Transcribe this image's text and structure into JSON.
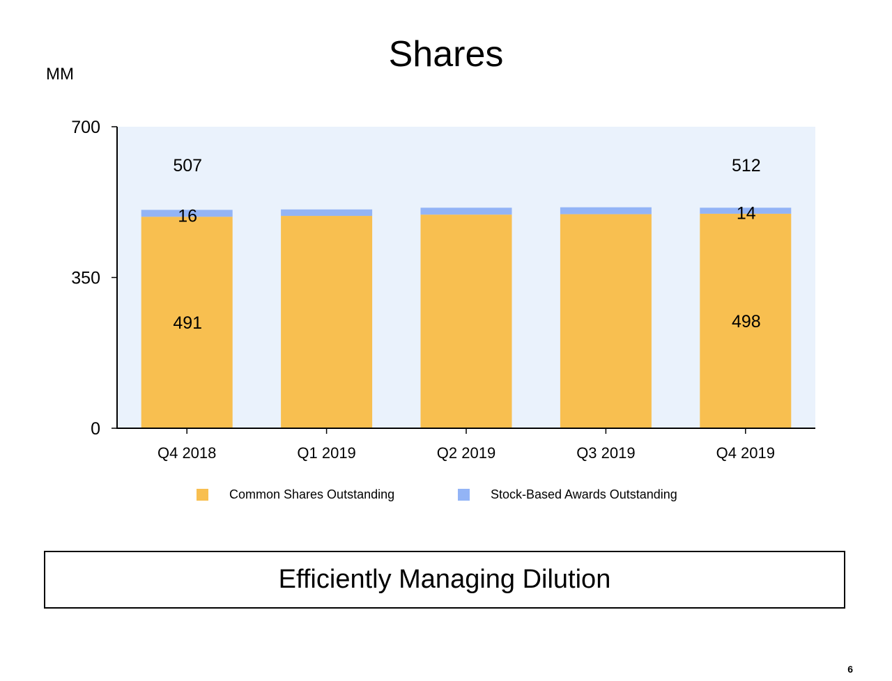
{
  "slide": {
    "title": "Shares",
    "unit": "MM",
    "callout": "Efficiently Managing Dilution",
    "page_number": "6"
  },
  "colors": {
    "plot_background": "#eaf2fc",
    "common_shares": "#f8bf50",
    "stock_awards": "#93b4f6",
    "axis": "#000000"
  },
  "chart_data": {
    "type": "bar",
    "stacked": true,
    "title": "Shares",
    "ylabel": "MM",
    "xlabel": "",
    "ylim": [
      0,
      700
    ],
    "yticks": [
      0,
      350,
      700
    ],
    "grid": false,
    "legend_position": "bottom",
    "categories": [
      "Q4 2018",
      "Q1 2019",
      "Q2 2019",
      "Q3 2019",
      "Q4 2019"
    ],
    "series": [
      {
        "name": "Common Shares Outstanding",
        "values": [
          491,
          493,
          496,
          497,
          498
        ]
      },
      {
        "name": "Stock-Based Awards Outstanding",
        "values": [
          16,
          15,
          16,
          16,
          14
        ]
      }
    ],
    "totals": [
      507,
      508,
      512,
      513,
      512
    ],
    "labels": [
      {
        "text": "507",
        "category": "Q4 2018",
        "role": "total"
      },
      {
        "text": "16",
        "category": "Q4 2018",
        "role": "Stock-Based Awards Outstanding"
      },
      {
        "text": "491",
        "category": "Q4 2018",
        "role": "Common Shares Outstanding"
      },
      {
        "text": "512",
        "category": "Q4 2019",
        "role": "total"
      },
      {
        "text": "14",
        "category": "Q4 2019",
        "role": "Stock-Based Awards Outstanding"
      },
      {
        "text": "498",
        "category": "Q4 2019",
        "role": "Common Shares Outstanding"
      }
    ]
  }
}
